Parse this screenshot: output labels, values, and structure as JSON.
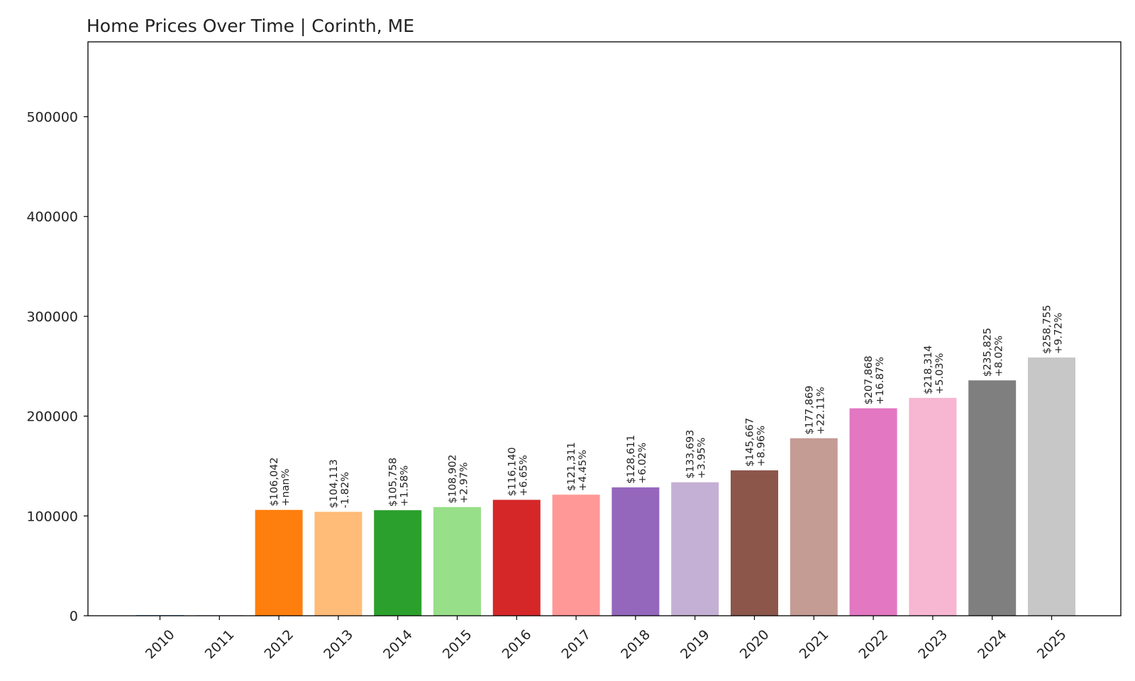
{
  "chart_data": {
    "type": "bar",
    "title": "Home Prices Over Time | Corinth, ME",
    "xlabel": "",
    "ylabel": "",
    "ylim": [
      0,
      575000
    ],
    "yticks": [
      0,
      100000,
      200000,
      300000,
      400000,
      500000
    ],
    "ytick_labels": [
      "0",
      "100000",
      "200000",
      "300000",
      "400000",
      "500000"
    ],
    "grid": false,
    "categories": [
      "2010",
      "2011",
      "2012",
      "2013",
      "2014",
      "2015",
      "2016",
      "2017",
      "2018",
      "2019",
      "2020",
      "2021",
      "2022",
      "2023",
      "2024",
      "2025"
    ],
    "values": [
      0,
      0,
      106042,
      104113,
      105758,
      108902,
      116140,
      121311,
      128611,
      133693,
      145667,
      177869,
      207868,
      218314,
      235825,
      258755
    ],
    "price_labels": [
      "",
      "",
      "$106,042",
      "$104,113",
      "$105,758",
      "$108,902",
      "$116,140",
      "$121,311",
      "$128,611",
      "$133,693",
      "$145,667",
      "$177,869",
      "$207,868",
      "$218,314",
      "$235,825",
      "$258,755"
    ],
    "change_labels": [
      "",
      "",
      "+nan%",
      "-1.82%",
      "+1.58%",
      "+2.97%",
      "+6.65%",
      "+4.45%",
      "+6.02%",
      "+3.95%",
      "+8.96%",
      "+22.11%",
      "+16.87%",
      "+5.03%",
      "+8.02%",
      "+9.72%"
    ],
    "colors": [
      "#1f77b4",
      "#aec7e8",
      "#ff7f0e",
      "#ffbb78",
      "#2ca02c",
      "#98df8a",
      "#d62728",
      "#ff9896",
      "#9467bd",
      "#c5b0d5",
      "#8c564b",
      "#c49c94",
      "#e377c2",
      "#f7b6d2",
      "#7f7f7f",
      "#c7c7c7"
    ]
  }
}
